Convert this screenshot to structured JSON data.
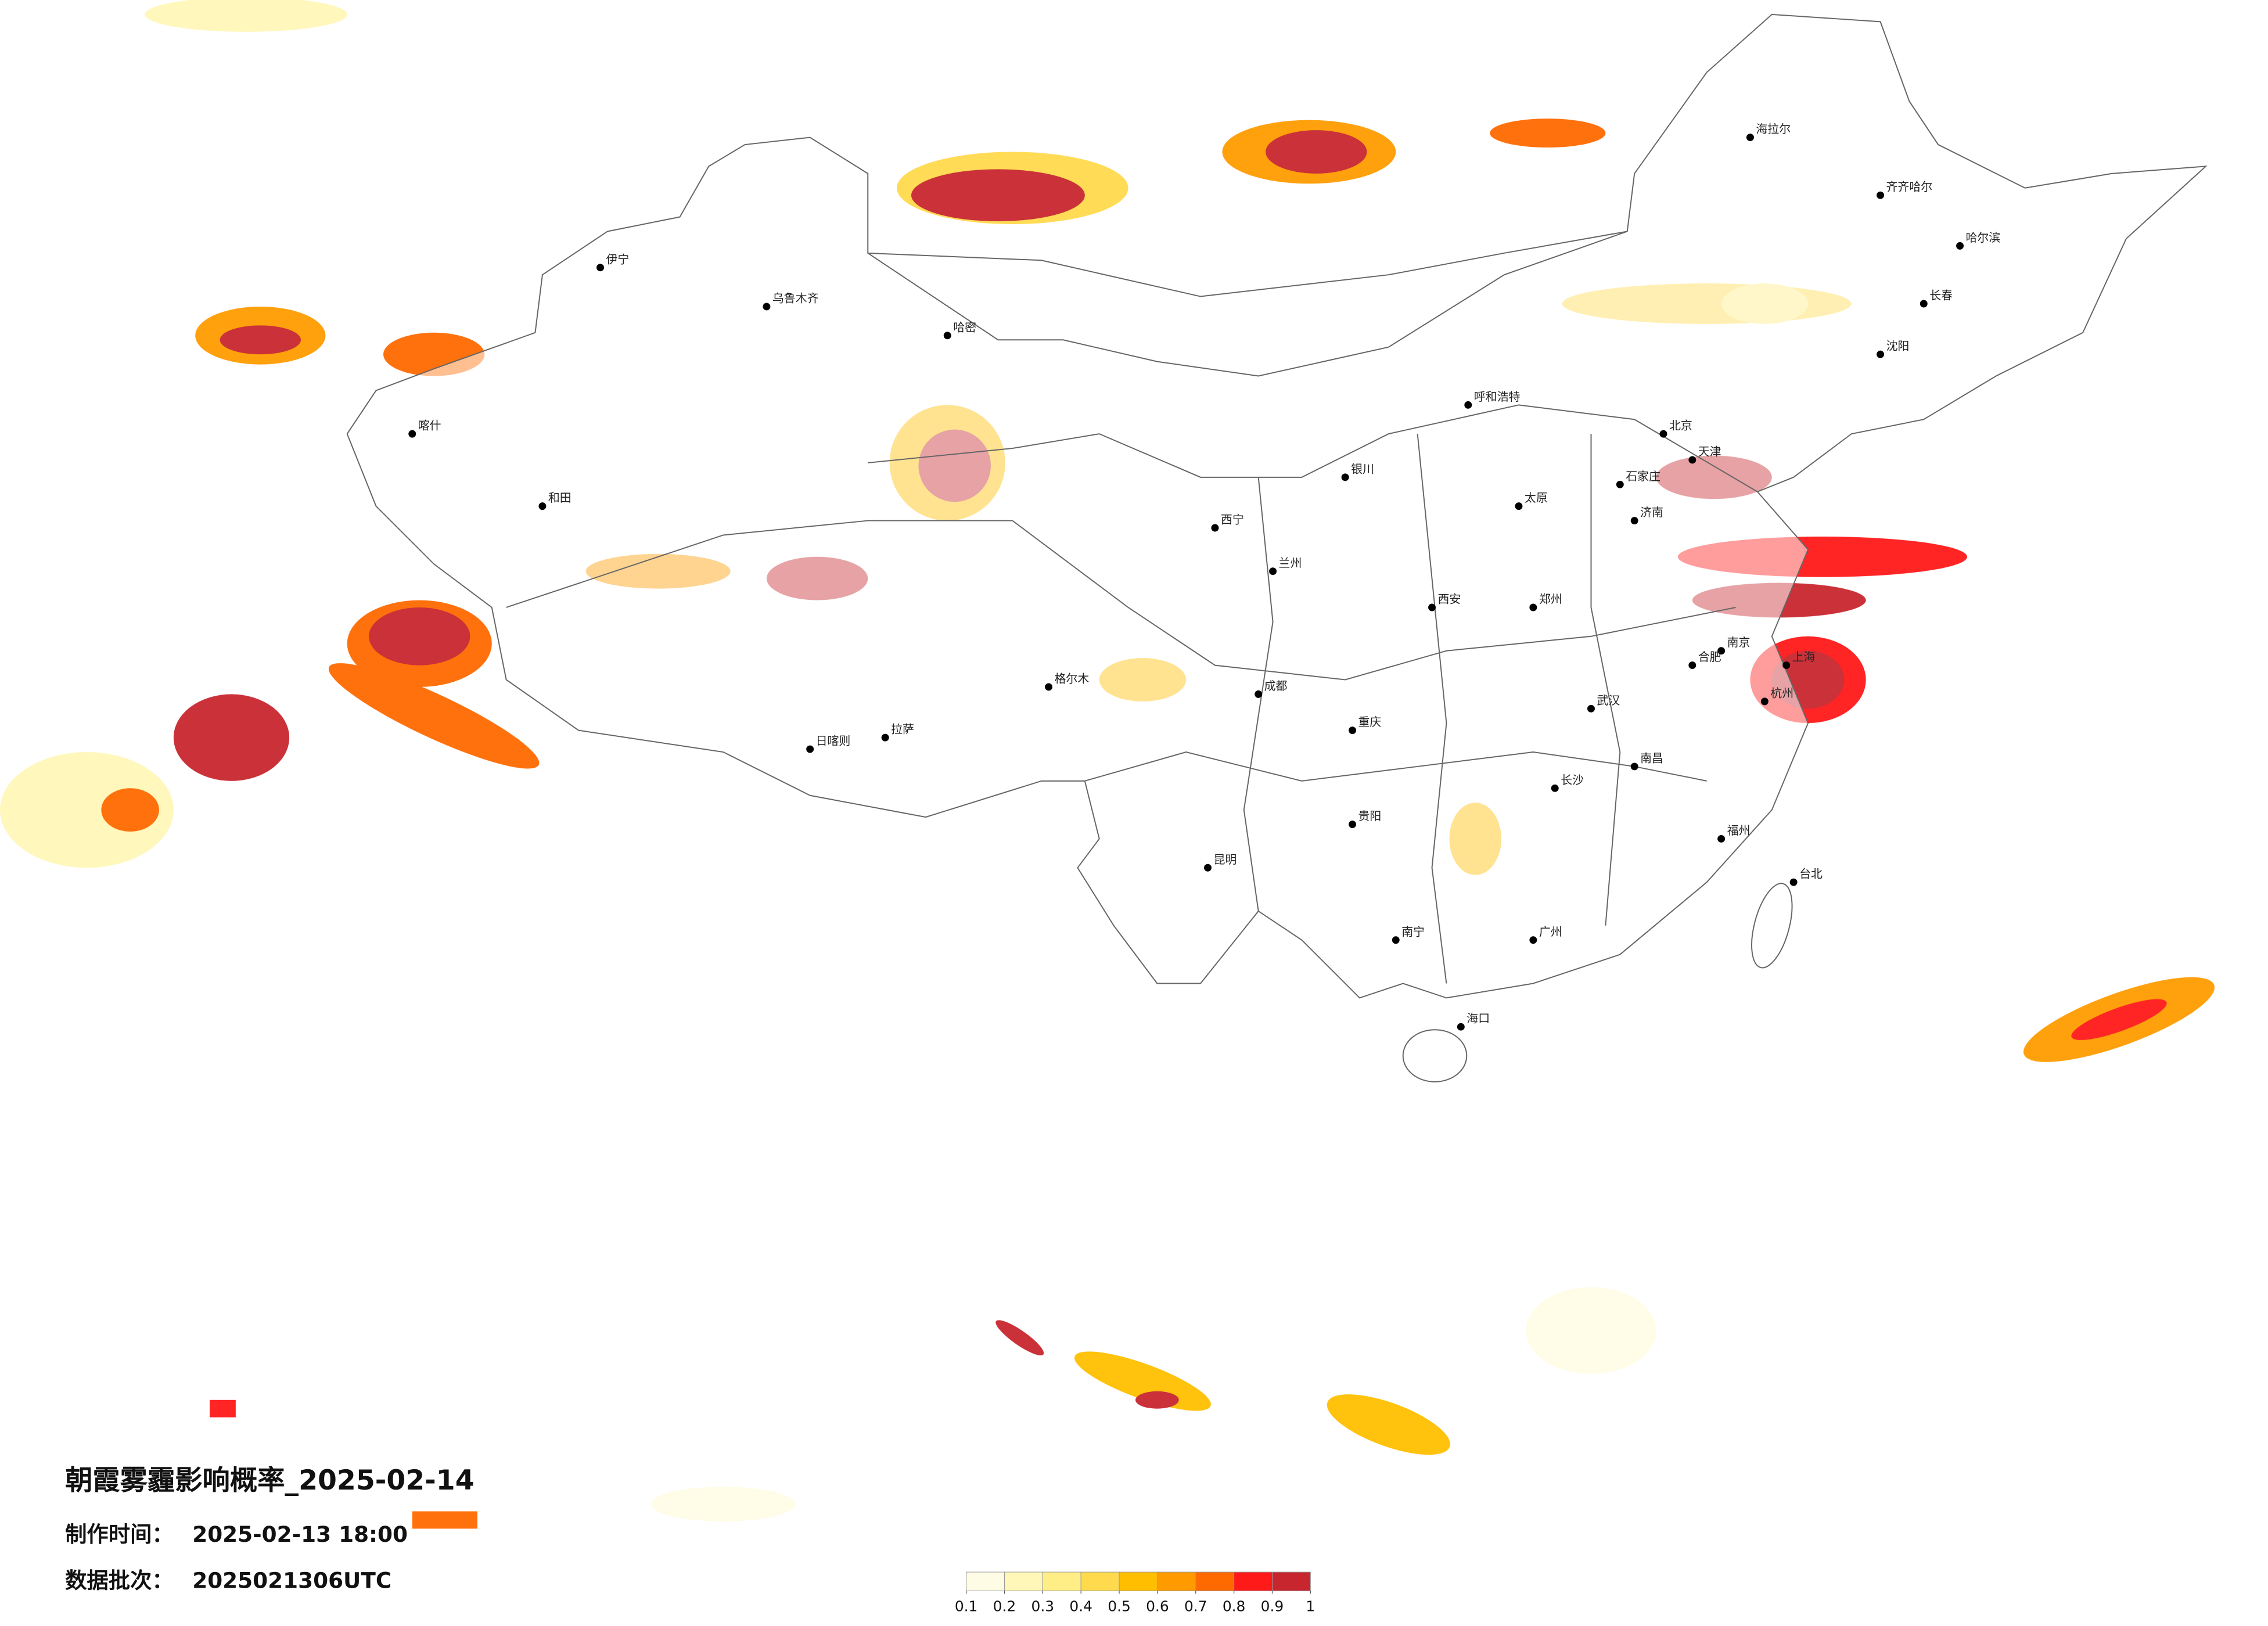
{
  "map": {
    "title": "朝霞雾霾影响概率_2025-02-14",
    "made_label": "制作时间：",
    "made_value": "2025-02-13 18:00",
    "batch_label": "数据批次：",
    "batch_value": "2025021306UTC",
    "legend": {
      "ticks": [
        0.1,
        0.2,
        0.3,
        0.4,
        0.5,
        0.6,
        0.7,
        0.8,
        0.9,
        1
      ],
      "colors": [
        "#fffce6",
        "#fff7b8",
        "#ffee85",
        "#ffda4d",
        "#ffbf00",
        "#ff9b00",
        "#ff6a00",
        "#ff1a1a",
        "#c8262e"
      ]
    },
    "cities": [
      "北京",
      "天津",
      "上海",
      "广州",
      "重庆",
      "成都",
      "西安",
      "武汉",
      "拉萨",
      "乌鲁木齐",
      "哈尔滨",
      "长春",
      "沈阳",
      "郑州",
      "济南",
      "南京",
      "杭州",
      "福州",
      "南宁",
      "昆明",
      "贵阳",
      "兰州",
      "西宁",
      "银川",
      "呼和浩特",
      "太原",
      "石家庄",
      "长沙",
      "南昌",
      "合肥",
      "海口",
      "台北",
      "喀什",
      "和田",
      "伊宁",
      "哈密",
      "格尔木",
      "日喀则",
      "齐齐哈尔",
      "海拉尔"
    ]
  }
}
